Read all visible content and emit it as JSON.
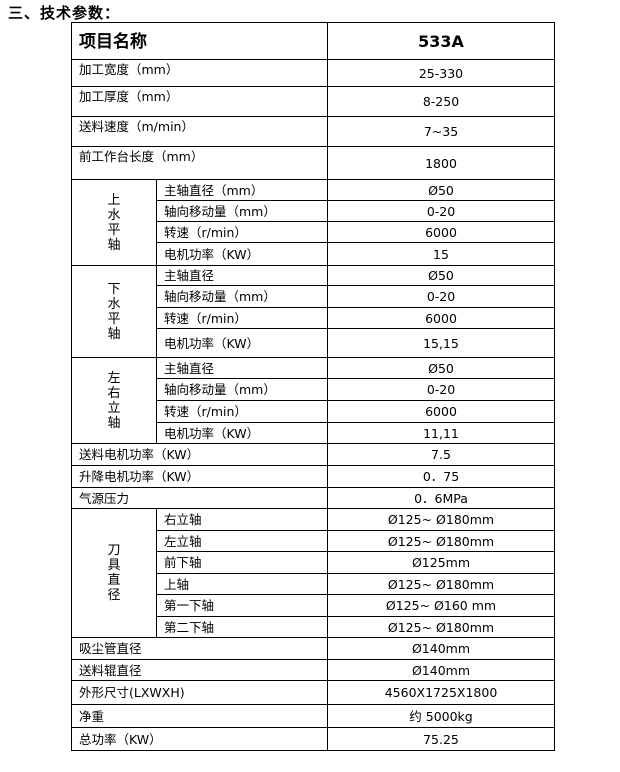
{
  "section_title": "三、技术参数：",
  "table": {
    "header": {
      "label": "项目名称",
      "value": "533A"
    },
    "rows_top": [
      {
        "label": "加工宽度（mm）",
        "value": "25-330"
      },
      {
        "label": "加工厚度（mm）",
        "value": "8-250"
      },
      {
        "label": "送料速度（m/min）",
        "value": "7~35"
      },
      {
        "label": "前工作台长度（mm）",
        "value": "1800"
      }
    ],
    "groups": [
      {
        "name": "上水平轴",
        "rows": [
          {
            "label": "主轴直径（mm）",
            "value": "Ø50"
          },
          {
            "label": "轴向移动量（mm）",
            "value": "0-20"
          },
          {
            "label": "转速（r/min）",
            "value": "6000"
          },
          {
            "label": "电机功率（KW）",
            "value": "15"
          }
        ]
      },
      {
        "name": "下水平轴",
        "rows": [
          {
            "label": "主轴直径",
            "value": "Ø50"
          },
          {
            "label": "轴向移动量（mm）",
            "value": "0-20"
          },
          {
            "label": "转速（r/min）",
            "value": "6000"
          },
          {
            "label": "电机功率（KW）",
            "value": "15,15"
          }
        ]
      },
      {
        "name": "左右立轴",
        "rows": [
          {
            "label": "主轴直径",
            "value": "Ø50"
          },
          {
            "label": "轴向移动量（mm）",
            "value": "0-20"
          },
          {
            "label": "转速（r/min）",
            "value": "6000"
          },
          {
            "label": "电机功率（KW）",
            "value": "11,11"
          }
        ]
      }
    ],
    "rows_mid": [
      {
        "label": "送料电机功率（KW）",
        "value": "7.5"
      },
      {
        "label": "升降电机功率（KW）",
        "value": "0．75"
      },
      {
        "label": "气源压力",
        "value": "0．6MPa"
      }
    ],
    "cutter_group": {
      "name": "刀具直径",
      "rows": [
        {
          "label": "右立轴",
          "value": "Ø125~ Ø180mm"
        },
        {
          "label": "左立轴",
          "value": "Ø125~ Ø180mm"
        },
        {
          "label": "前下轴",
          "value": "Ø125mm"
        },
        {
          "label": "上轴",
          "value": "Ø125~ Ø180mm"
        },
        {
          "label": "第一下轴",
          "value": "Ø125~ Ø160 mm"
        },
        {
          "label": "第二下轴",
          "value": "Ø125~ Ø180mm"
        }
      ]
    },
    "rows_bottom": [
      {
        "label": "吸尘管直径",
        "value": "Ø140mm"
      },
      {
        "label": "送料辊直径",
        "value": "Ø140mm"
      },
      {
        "label": "外形尺寸(LXWXH)",
        "value": "4560X1725X1800"
      },
      {
        "label": "净重",
        "value": "约 5000kg"
      },
      {
        "label": "总功率（KW）",
        "value": "75.25"
      }
    ]
  }
}
